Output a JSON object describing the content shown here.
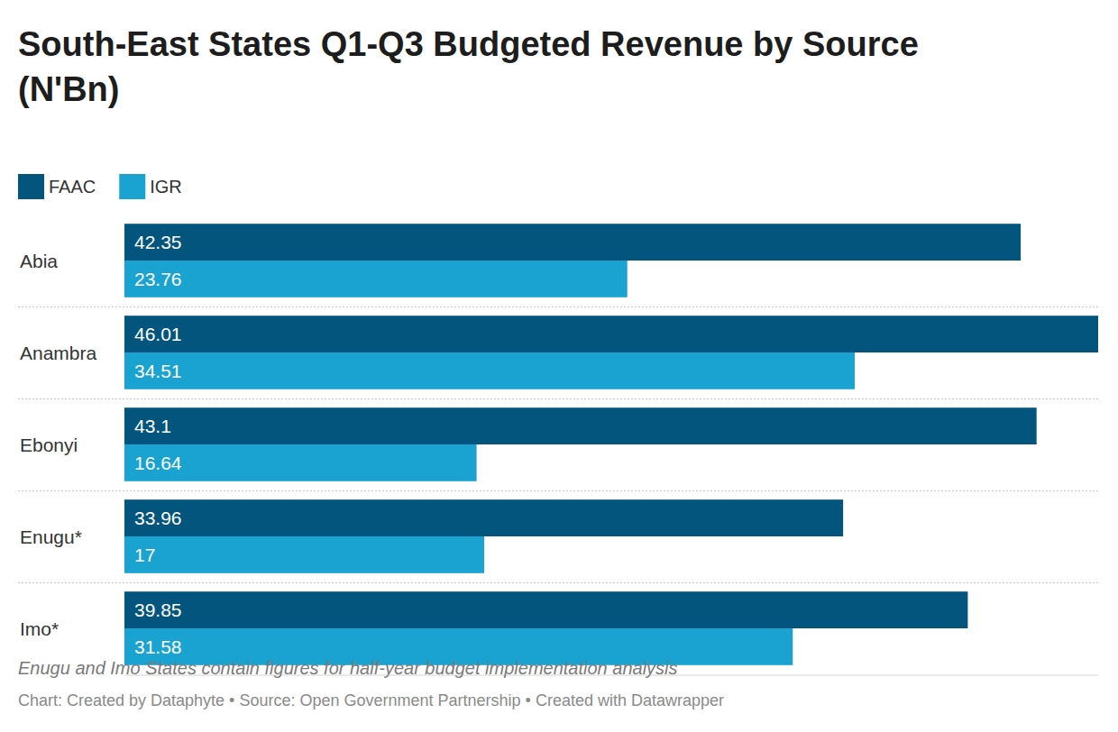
{
  "chart_data": {
    "type": "bar",
    "title": "South-East States Q1-Q3 Budgeted Revenue by Source (N'Bn)",
    "orientation": "horizontal",
    "categories": [
      "Abia",
      "Anambra",
      "Ebonyi",
      "Enugu*",
      "Imo*"
    ],
    "series": [
      {
        "name": "FAAC",
        "color": "#03557d",
        "values": [
          42.35,
          46.01,
          43.1,
          33.96,
          39.85
        ]
      },
      {
        "name": "IGR",
        "color": "#1aa2d0",
        "values": [
          23.76,
          34.51,
          16.64,
          17,
          31.58
        ]
      }
    ],
    "xlim": [
      0,
      46.01
    ],
    "tick_labels": false,
    "data_labels": true,
    "legend": "top-left",
    "note": "Enugu and Imo States contain figures for half-year budget implementation analysis",
    "credit": "Chart: Created by Dataphyte • Source: Open Government Partnership • Created with Datawrapper"
  }
}
